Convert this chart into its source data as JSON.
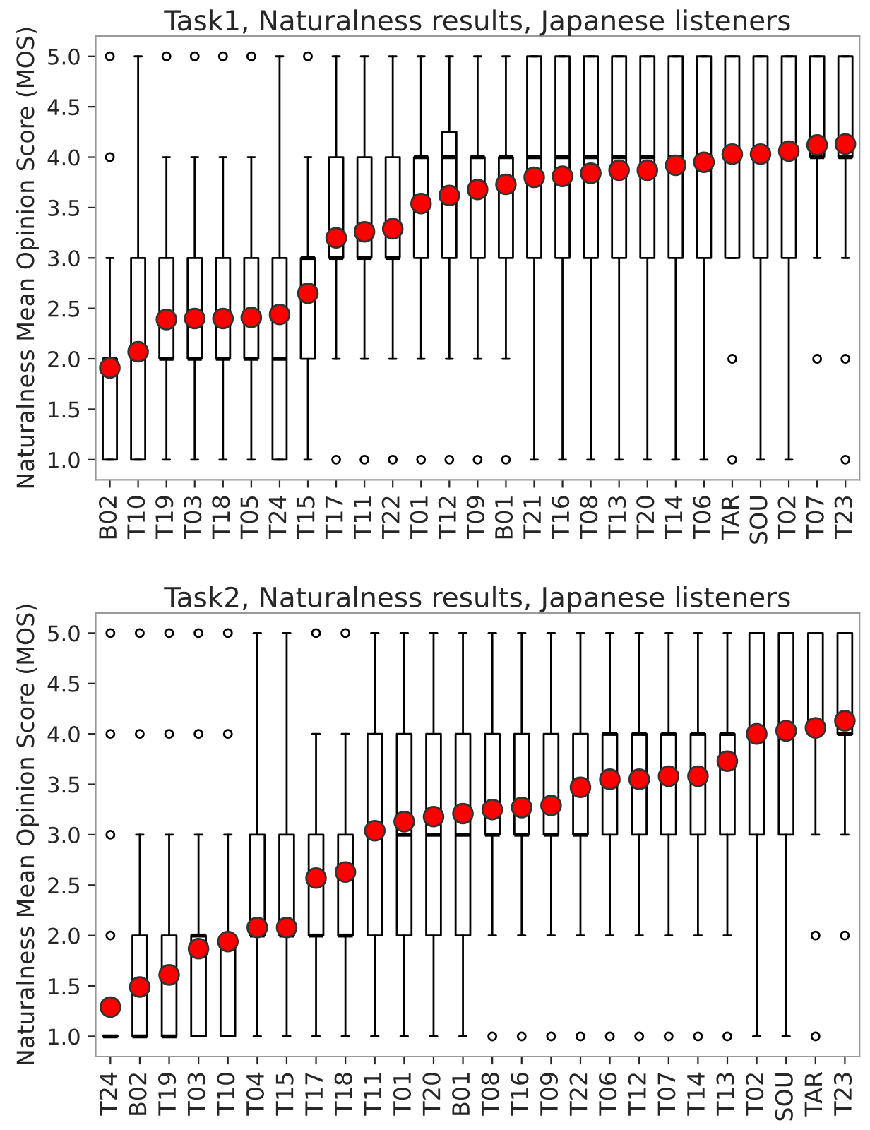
{
  "chart_data": [
    {
      "type": "box",
      "title": "Task1, Naturalness results, Japanese listeners",
      "ylabel": "Naturalness Mean Opinion Score (MOS)",
      "ylim": [
        0.8,
        5.2
      ],
      "yticks": [
        {
          "value": 1,
          "label": "1.0"
        },
        {
          "value": 1.5,
          "label": "1.5"
        },
        {
          "value": 2,
          "label": "2.0"
        },
        {
          "value": 2.5,
          "label": "2.5"
        },
        {
          "value": 3,
          "label": "3.0"
        },
        {
          "value": 3.5,
          "label": "3.5"
        },
        {
          "value": 4,
          "label": "4.0"
        },
        {
          "value": 4.5,
          "label": "4.5"
        },
        {
          "value": 5,
          "label": "5.0"
        }
      ],
      "categories": [
        "B02",
        "T10",
        "T19",
        "T03",
        "T18",
        "T05",
        "T24",
        "T15",
        "T17",
        "T11",
        "T22",
        "T01",
        "T12",
        "T09",
        "B01",
        "T21",
        "T16",
        "T08",
        "T13",
        "T20",
        "T14",
        "T06",
        "TAR",
        "SOU",
        "T02",
        "T07",
        "T23"
      ],
      "boxes": [
        {
          "low": 1,
          "q1": 1,
          "median": 2,
          "q3": 2,
          "high": 3,
          "mean": 1.91,
          "outliers": [
            4,
            5
          ]
        },
        {
          "low": 1,
          "q1": 1,
          "median": 2,
          "q3": 3,
          "high": 5,
          "mean": 2.07
        },
        {
          "low": 1,
          "q1": 2,
          "median": 2,
          "q3": 3,
          "high": 4,
          "mean": 2.39,
          "outliers": [
            5
          ]
        },
        {
          "low": 1,
          "q1": 2,
          "median": 2,
          "q3": 3,
          "high": 4,
          "mean": 2.4,
          "outliers": [
            5
          ]
        },
        {
          "low": 1,
          "q1": 2,
          "median": 2,
          "q3": 3,
          "high": 4,
          "mean": 2.4,
          "outliers": [
            5
          ]
        },
        {
          "low": 1,
          "q1": 2,
          "median": 2,
          "q3": 3,
          "high": 4,
          "mean": 2.41,
          "outliers": [
            5
          ]
        },
        {
          "low": 1,
          "q1": 1,
          "median": 2,
          "q3": 3,
          "high": 5,
          "mean": 2.44
        },
        {
          "low": 1,
          "q1": 2,
          "median": 3,
          "q3": 3,
          "high": 4,
          "mean": 2.65,
          "outliers": [
            5
          ]
        },
        {
          "low": 2,
          "q1": 3,
          "median": 3,
          "q3": 4,
          "high": 5,
          "mean": 3.2,
          "outliers": [
            1
          ]
        },
        {
          "low": 2,
          "q1": 3,
          "median": 3,
          "q3": 4,
          "high": 5,
          "mean": 3.26,
          "outliers": [
            1
          ]
        },
        {
          "low": 2,
          "q1": 3,
          "median": 3,
          "q3": 4,
          "high": 5,
          "mean": 3.29,
          "outliers": [
            1
          ]
        },
        {
          "low": 2,
          "q1": 3,
          "median": 4,
          "q3": 4,
          "high": 5,
          "mean": 3.54,
          "outliers": [
            1
          ]
        },
        {
          "low": 2,
          "q1": 3,
          "median": 4,
          "q3": 4.25,
          "high": 5,
          "mean": 3.62,
          "outliers": [
            1
          ]
        },
        {
          "low": 2,
          "q1": 3,
          "median": 4,
          "q3": 4,
          "high": 5,
          "mean": 3.68,
          "outliers": [
            1
          ]
        },
        {
          "low": 2,
          "q1": 3,
          "median": 4,
          "q3": 4,
          "high": 5,
          "mean": 3.73,
          "outliers": [
            1
          ]
        },
        {
          "low": 1,
          "q1": 3,
          "median": 4,
          "q3": 5,
          "high": 5,
          "mean": 3.8
        },
        {
          "low": 1,
          "q1": 3,
          "median": 4,
          "q3": 5,
          "high": 5,
          "mean": 3.81
        },
        {
          "low": 1,
          "q1": 3,
          "median": 4,
          "q3": 5,
          "high": 5,
          "mean": 3.84
        },
        {
          "low": 1,
          "q1": 3,
          "median": 4,
          "q3": 5,
          "high": 5,
          "mean": 3.87
        },
        {
          "low": 1,
          "q1": 3,
          "median": 4,
          "q3": 5,
          "high": 5,
          "mean": 3.87
        },
        {
          "low": 1,
          "q1": 3,
          "median": 4,
          "q3": 5,
          "high": 5,
          "mean": 3.92
        },
        {
          "low": 1,
          "q1": 3,
          "median": 4,
          "q3": 5,
          "high": 5,
          "mean": 3.95
        },
        {
          "low": 3,
          "q1": 3,
          "median": 4,
          "q3": 5,
          "high": 5,
          "mean": 4.03,
          "outliers": [
            2,
            1
          ]
        },
        {
          "low": 1,
          "q1": 3,
          "median": 4,
          "q3": 5,
          "high": 5,
          "mean": 4.03
        },
        {
          "low": 1,
          "q1": 3,
          "median": 4,
          "q3": 5,
          "high": 5,
          "mean": 4.06
        },
        {
          "low": 3,
          "q1": 4,
          "median": 4,
          "q3": 5,
          "high": 5,
          "mean": 4.12,
          "outliers": [
            2
          ]
        },
        {
          "low": 3,
          "q1": 4,
          "median": 4,
          "q3": 5,
          "high": 5,
          "mean": 4.13,
          "outliers": [
            2,
            1
          ]
        }
      ]
    },
    {
      "type": "box",
      "title": "Task2, Naturalness results, Japanese listeners",
      "ylabel": "Naturalness Mean Opinion Score (MOS)",
      "ylim": [
        0.8,
        5.2
      ],
      "yticks": [
        {
          "value": 1,
          "label": "1.0"
        },
        {
          "value": 1.5,
          "label": "1.5"
        },
        {
          "value": 2,
          "label": "2.0"
        },
        {
          "value": 2.5,
          "label": "2.5"
        },
        {
          "value": 3,
          "label": "3.0"
        },
        {
          "value": 3.5,
          "label": "3.5"
        },
        {
          "value": 4,
          "label": "4.0"
        },
        {
          "value": 4.5,
          "label": "4.5"
        },
        {
          "value": 5,
          "label": "5.0"
        }
      ],
      "categories": [
        "T24",
        "B02",
        "T19",
        "T03",
        "T10",
        "T04",
        "T15",
        "T17",
        "T18",
        "T11",
        "T01",
        "T20",
        "B01",
        "T08",
        "T16",
        "T09",
        "T22",
        "T06",
        "T12",
        "T07",
        "T14",
        "T13",
        "T02",
        "SOU",
        "TAR",
        "T23"
      ],
      "boxes": [
        {
          "low": 1,
          "q1": 1,
          "median": 1,
          "q3": 1,
          "high": 1,
          "mean": 1.29,
          "outliers": [
            2,
            3,
            4,
            5
          ]
        },
        {
          "low": 1,
          "q1": 1,
          "median": 1,
          "q3": 2,
          "high": 3,
          "mean": 1.49,
          "outliers": [
            4,
            5
          ]
        },
        {
          "low": 1,
          "q1": 1,
          "median": 1,
          "q3": 2,
          "high": 3,
          "mean": 1.61,
          "outliers": [
            4,
            5
          ]
        },
        {
          "low": 1,
          "q1": 1,
          "median": 2,
          "q3": 2,
          "high": 3,
          "mean": 1.87,
          "outliers": [
            4,
            5
          ]
        },
        {
          "low": 1,
          "q1": 1,
          "median": 2,
          "q3": 2,
          "high": 3,
          "mean": 1.94,
          "outliers": [
            4,
            5
          ]
        },
        {
          "low": 1,
          "q1": 2,
          "median": 2,
          "q3": 3,
          "high": 5,
          "mean": 2.08
        },
        {
          "low": 1,
          "q1": 2,
          "median": 2,
          "q3": 3,
          "high": 5,
          "mean": 2.08
        },
        {
          "low": 1,
          "q1": 2,
          "median": 2,
          "q3": 3,
          "high": 4,
          "mean": 2.57,
          "outliers": [
            5
          ]
        },
        {
          "low": 1,
          "q1": 2,
          "median": 2,
          "q3": 3,
          "high": 4,
          "mean": 2.63,
          "outliers": [
            5
          ]
        },
        {
          "low": 1,
          "q1": 2,
          "median": 3,
          "q3": 4,
          "high": 5,
          "mean": 3.04
        },
        {
          "low": 1,
          "q1": 2,
          "median": 3,
          "q3": 4,
          "high": 5,
          "mean": 3.13
        },
        {
          "low": 1,
          "q1": 2,
          "median": 3,
          "q3": 4,
          "high": 5,
          "mean": 3.18
        },
        {
          "low": 1,
          "q1": 2,
          "median": 3,
          "q3": 4,
          "high": 5,
          "mean": 3.21
        },
        {
          "low": 2,
          "q1": 3,
          "median": 3,
          "q3": 4,
          "high": 5,
          "mean": 3.25,
          "outliers": [
            1
          ]
        },
        {
          "low": 2,
          "q1": 3,
          "median": 3,
          "q3": 4,
          "high": 5,
          "mean": 3.27,
          "outliers": [
            1
          ]
        },
        {
          "low": 2,
          "q1": 3,
          "median": 3,
          "q3": 4,
          "high": 5,
          "mean": 3.29,
          "outliers": [
            1
          ]
        },
        {
          "low": 2,
          "q1": 3,
          "median": 3,
          "q3": 4,
          "high": 5,
          "mean": 3.47,
          "outliers": [
            1
          ]
        },
        {
          "low": 2,
          "q1": 3,
          "median": 4,
          "q3": 4,
          "high": 5,
          "mean": 3.55,
          "outliers": [
            1
          ]
        },
        {
          "low": 2,
          "q1": 3,
          "median": 4,
          "q3": 4,
          "high": 5,
          "mean": 3.55,
          "outliers": [
            1
          ]
        },
        {
          "low": 2,
          "q1": 3,
          "median": 4,
          "q3": 4,
          "high": 5,
          "mean": 3.58,
          "outliers": [
            1
          ]
        },
        {
          "low": 2,
          "q1": 3,
          "median": 4,
          "q3": 4,
          "high": 5,
          "mean": 3.58,
          "outliers": [
            1
          ]
        },
        {
          "low": 2,
          "q1": 3,
          "median": 4,
          "q3": 4,
          "high": 5,
          "mean": 3.73,
          "outliers": [
            1
          ]
        },
        {
          "low": 1,
          "q1": 3,
          "median": 4,
          "q3": 5,
          "high": 5,
          "mean": 4.0
        },
        {
          "low": 1,
          "q1": 3,
          "median": 4,
          "q3": 5,
          "high": 5,
          "mean": 4.03
        },
        {
          "low": 3,
          "q1": 4,
          "median": 4,
          "q3": 5,
          "high": 5,
          "mean": 4.06,
          "outliers": [
            2,
            1
          ]
        },
        {
          "low": 3,
          "q1": 4,
          "median": 4,
          "q3": 5,
          "high": 5,
          "mean": 4.13,
          "outliers": [
            2
          ]
        }
      ]
    }
  ]
}
